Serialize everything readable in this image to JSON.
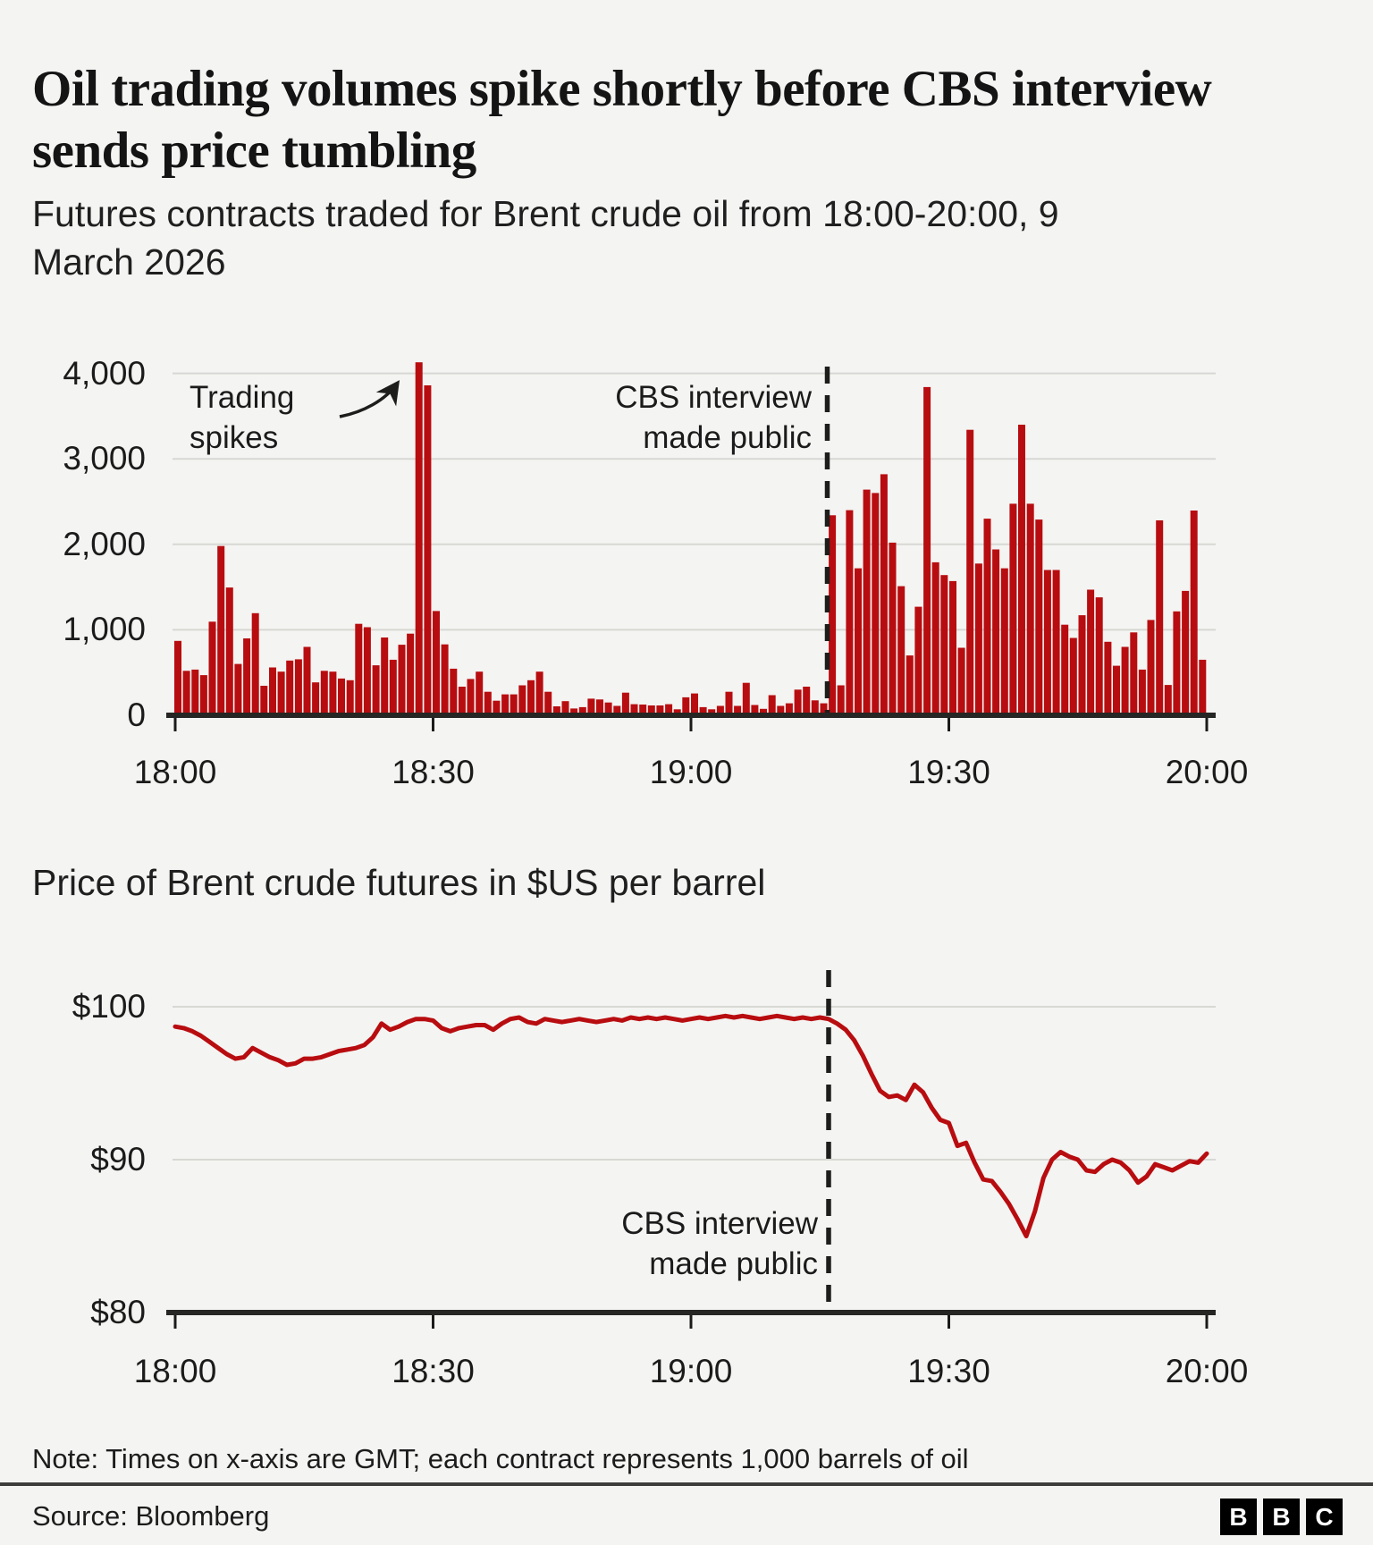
{
  "header": {
    "title": "Oil trading volumes spike shortly before CBS interview sends price tumbling"
  },
  "chart1": {
    "title": "Futures contracts traded for Brent crude oil from 18:00-20:00, 9 March 2026",
    "y_ticks": [
      "4,000",
      "3,000",
      "2,000",
      "1,000",
      "0"
    ],
    "x_ticks": [
      "18:00",
      "18:30",
      "19:00",
      "19:30",
      "20:00"
    ],
    "annotations": {
      "trading_spikes": "Trading\nspikes",
      "cbs": "CBS interview\nmade public"
    }
  },
  "chart2": {
    "title": "Price of Brent crude futures in $US per barrel",
    "y_ticks": [
      "$100",
      "$90",
      "$80"
    ],
    "x_ticks": [
      "18:00",
      "18:30",
      "19:00",
      "19:30",
      "20:00"
    ],
    "annotations": {
      "cbs": "CBS interview\nmade public"
    }
  },
  "footer": {
    "note": "Note: Times on x-axis are GMT; each contract represents 1,000 barrels of oil",
    "source": "Source: Bloomberg",
    "logo_letters": [
      "B",
      "B",
      "C"
    ]
  },
  "colors": {
    "background": "#f4f4f2",
    "series_red": "#b80d10",
    "gridline": "#d7d7d4",
    "axis": "#262624",
    "dashed_event_line": "#1d1d1b",
    "text_dark": "#141414"
  },
  "chart_data": [
    {
      "type": "bar",
      "title": "Futures contracts traded for Brent crude oil from 18:00-20:00, 9 March 2026",
      "xlabel": "Time (GMT), 1-minute intervals from 18:00 to 20:00",
      "ylabel": "Futures contracts traded",
      "x_start": "18:00",
      "x_end": "20:00",
      "interval_minutes": 1,
      "ylim": [
        0,
        4500
      ],
      "ytick_values": [
        4000,
        3000,
        2000,
        1000,
        0
      ],
      "xtick_labels": [
        "18:00",
        "18:30",
        "19:00",
        "19:30",
        "20:00"
      ],
      "grid": true,
      "event": {
        "label": "CBS interview made public",
        "time": "19:16"
      },
      "annotation": {
        "label": "Trading spikes",
        "time": "18:28",
        "value": 4130
      },
      "values": [
        870,
        520,
        535,
        470,
        1095,
        1980,
        1495,
        600,
        900,
        1195,
        345,
        560,
        510,
        640,
        655,
        800,
        385,
        520,
        510,
        430,
        410,
        1070,
        1030,
        585,
        910,
        650,
        825,
        955,
        4130,
        3860,
        1220,
        830,
        545,
        335,
        425,
        510,
        275,
        170,
        245,
        245,
        350,
        410,
        510,
        275,
        105,
        165,
        80,
        95,
        195,
        185,
        150,
        110,
        265,
        130,
        125,
        115,
        115,
        130,
        70,
        210,
        255,
        95,
        70,
        110,
        275,
        110,
        380,
        120,
        75,
        235,
        110,
        140,
        300,
        335,
        175,
        140,
        2340,
        350,
        2400,
        1720,
        2640,
        2600,
        2820,
        2020,
        1510,
        700,
        1270,
        3840,
        1790,
        1640,
        1570,
        790,
        3340,
        1775,
        2300,
        1940,
        1720,
        2475,
        3400,
        2475,
        2290,
        1700,
        1700,
        1060,
        905,
        1170,
        1470,
        1380,
        860,
        580,
        800,
        970,
        535,
        1115,
        2280,
        355,
        1215,
        1455,
        2395,
        650
      ]
    },
    {
      "type": "line",
      "title": "Price of Brent crude futures in $US per barrel",
      "xlabel": "Time (GMT), 1-minute intervals from 18:00 to 20:00",
      "ylabel": "$US per barrel",
      "x_start": "18:00",
      "x_end": "20:00",
      "interval_minutes": 1,
      "ylim": [
        80,
        102
      ],
      "ytick_values": [
        100,
        90,
        80
      ],
      "xtick_labels": [
        "18:00",
        "18:30",
        "19:00",
        "19:30",
        "20:00"
      ],
      "grid": true,
      "event": {
        "label": "CBS interview made public",
        "time": "19:16"
      },
      "values": [
        98.7,
        98.6,
        98.4,
        98.1,
        97.7,
        97.3,
        96.9,
        96.6,
        96.7,
        97.3,
        97.0,
        96.7,
        96.5,
        96.2,
        96.3,
        96.6,
        96.6,
        96.7,
        96.9,
        97.1,
        97.2,
        97.3,
        97.5,
        98.0,
        98.9,
        98.5,
        98.7,
        99.0,
        99.2,
        99.2,
        99.1,
        98.6,
        98.4,
        98.6,
        98.7,
        98.8,
        98.8,
        98.5,
        98.9,
        99.2,
        99.3,
        99.0,
        98.9,
        99.2,
        99.1,
        99.0,
        99.1,
        99.2,
        99.1,
        99.0,
        99.1,
        99.2,
        99.1,
        99.3,
        99.2,
        99.3,
        99.2,
        99.3,
        99.2,
        99.1,
        99.2,
        99.3,
        99.2,
        99.3,
        99.4,
        99.3,
        99.4,
        99.3,
        99.2,
        99.3,
        99.4,
        99.3,
        99.2,
        99.3,
        99.2,
        99.3,
        99.2,
        98.9,
        98.5,
        97.8,
        96.8,
        95.6,
        94.5,
        94.1,
        94.2,
        93.9,
        94.9,
        94.4,
        93.4,
        92.6,
        92.4,
        90.9,
        91.1,
        89.8,
        88.7,
        88.6,
        87.9,
        87.1,
        86.1,
        85.0,
        86.6,
        88.8,
        90.0,
        90.5,
        90.2,
        90.0,
        89.3,
        89.2,
        89.7,
        90.0,
        89.8,
        89.3,
        88.5,
        88.9,
        89.7,
        89.5,
        89.3,
        89.6,
        89.9,
        89.8,
        90.4
      ]
    }
  ]
}
